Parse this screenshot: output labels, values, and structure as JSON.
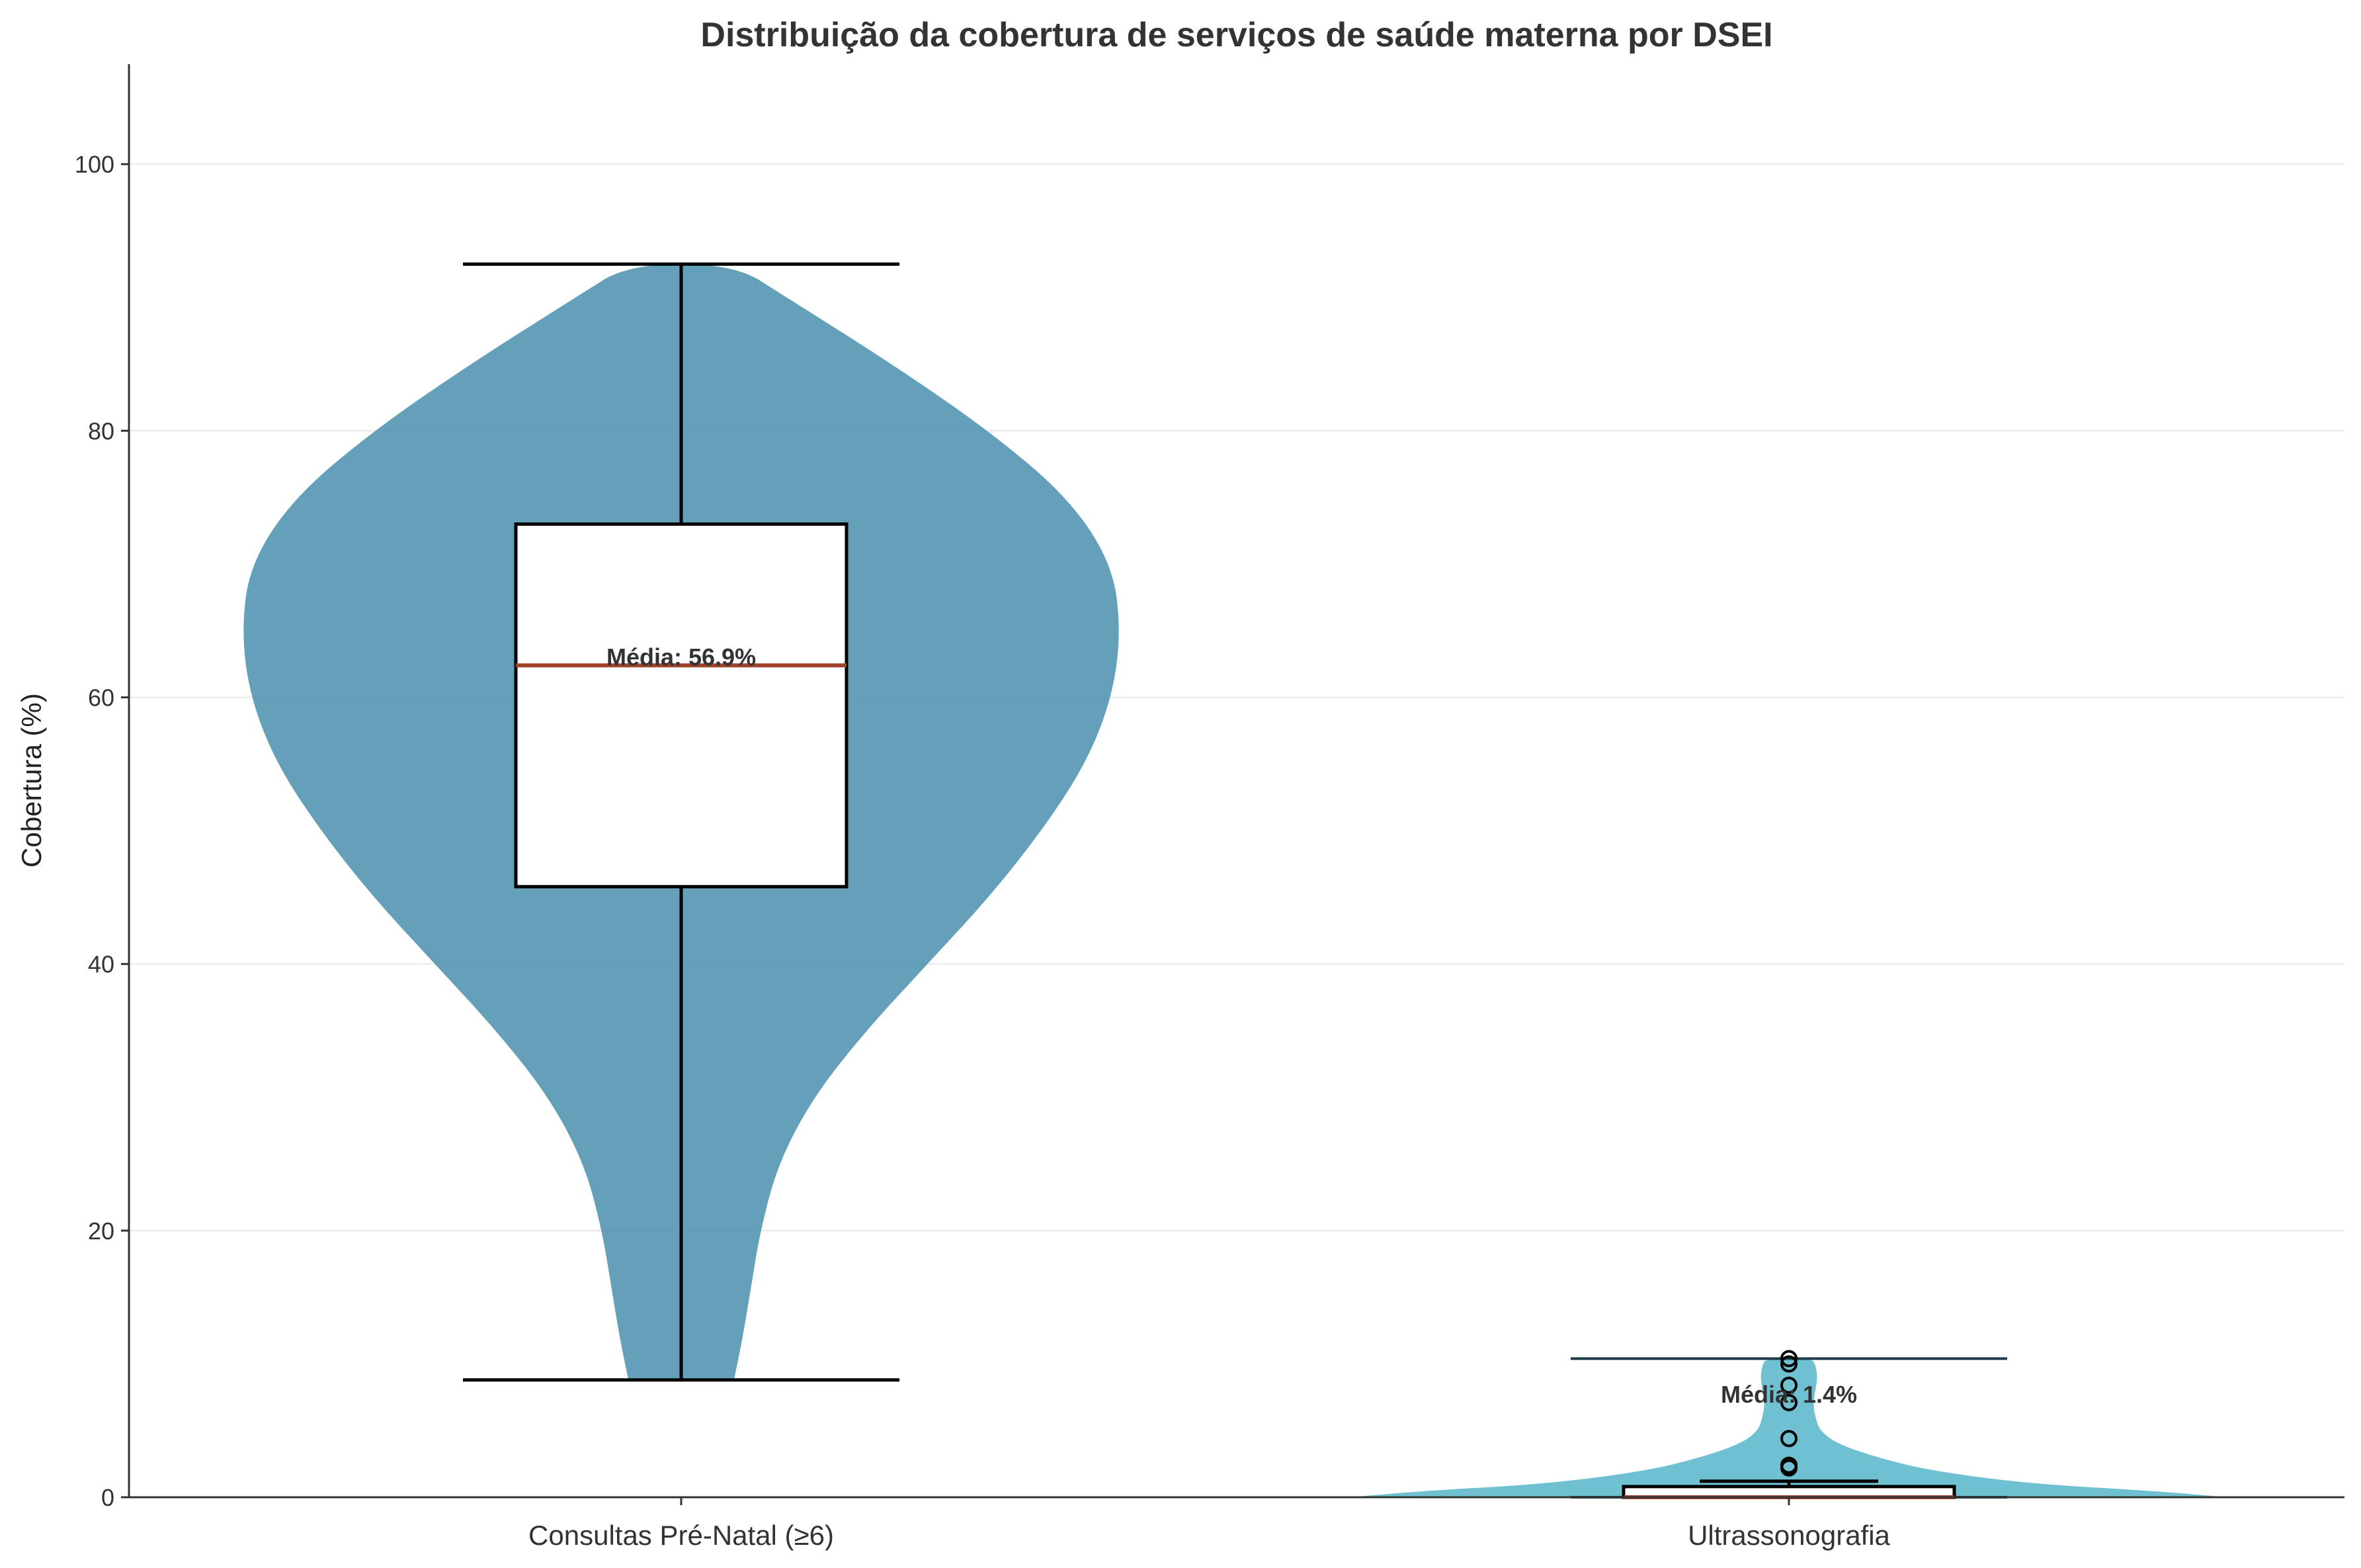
{
  "chart_data": {
    "type": "violin",
    "title": "Distribuição da cobertura de serviços de saúde materna por DSEI",
    "xlabel": "",
    "ylabel": "Cobertura (%)",
    "ylim": [
      0,
      107.5
    ],
    "yticks": [
      0,
      20,
      40,
      60,
      80,
      100
    ],
    "grid": "horizontal",
    "categories": [
      "Consultas Pré-Natal (≥6)",
      "Ultrassonografia"
    ],
    "series": [
      {
        "category": "Consultas Pré-Natal (≥6)",
        "color": "#4f93b0",
        "min": 8.8,
        "q1": 45.8,
        "median": 62.4,
        "q3": 73.0,
        "max": 92.5,
        "whisker_low": 8.8,
        "whisker_high": 92.5,
        "mean": 56.9,
        "mean_label": "Média: 56.9%",
        "outliers": [],
        "density_profile": [
          [
            8.8,
            0.12
          ],
          [
            12,
            0.14
          ],
          [
            16,
            0.16
          ],
          [
            20,
            0.18
          ],
          [
            25,
            0.22
          ],
          [
            30,
            0.3
          ],
          [
            35,
            0.42
          ],
          [
            40,
            0.56
          ],
          [
            45,
            0.7
          ],
          [
            50,
            0.82
          ],
          [
            55,
            0.92
          ],
          [
            60,
            0.98
          ],
          [
            65,
            1.0
          ],
          [
            70,
            0.98
          ],
          [
            75,
            0.88
          ],
          [
            80,
            0.7
          ],
          [
            85,
            0.48
          ],
          [
            90,
            0.24
          ],
          [
            92.5,
            0.12
          ]
        ]
      },
      {
        "category": "Ultrassonografia",
        "color": "#5bb8cc",
        "min": 0.0,
        "q1": 0.0,
        "median": 0.0,
        "q3": 0.8,
        "max": 10.4,
        "whisker_low": 0.0,
        "whisker_high": 1.2,
        "mean": 1.4,
        "mean_label": "Média: 1.4%",
        "outliers": [
          2.2,
          2.4,
          4.4,
          7.1,
          8.4,
          10.0,
          10.4
        ],
        "density_profile": [
          [
            0,
            1.0
          ],
          [
            0.5,
            0.82
          ],
          [
            1.0,
            0.55
          ],
          [
            2.0,
            0.32
          ],
          [
            3.0,
            0.2
          ],
          [
            4.0,
            0.11
          ],
          [
            5.0,
            0.07
          ],
          [
            6.0,
            0.06
          ],
          [
            7.0,
            0.055
          ],
          [
            8.0,
            0.06
          ],
          [
            9.0,
            0.065
          ],
          [
            10.0,
            0.06
          ],
          [
            10.4,
            0.05
          ]
        ]
      }
    ]
  }
}
